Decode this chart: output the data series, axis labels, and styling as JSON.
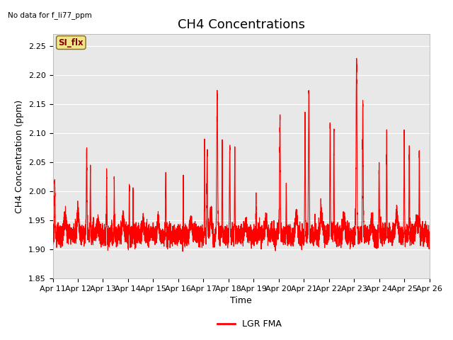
{
  "title": "CH4 Concentrations",
  "xlabel": "Time",
  "ylabel": "CH4 Concentration (ppm)",
  "top_left_text": "No data for f_li77_ppm",
  "annotation_box_text": "SI_flx",
  "annotation_box_color": "#f0e68c",
  "annotation_box_border": "#8b6914",
  "annotation_text_color": "#8b0000",
  "ylim": [
    1.85,
    2.27
  ],
  "yticks": [
    1.85,
    1.9,
    1.95,
    2.0,
    2.05,
    2.1,
    2.15,
    2.2,
    2.25
  ],
  "xtick_labels": [
    "Apr 11",
    "Apr 12",
    "Apr 13",
    "Apr 14",
    "Apr 15",
    "Apr 16",
    "Apr 17",
    "Apr 18",
    "Apr 19",
    "Apr 20",
    "Apr 21",
    "Apr 22",
    "Apr 23",
    "Apr 24",
    "Apr 25",
    "Apr 26"
  ],
  "line_color": "red",
  "line_width": 0.8,
  "legend_label": "LGR FMA",
  "legend_line_color": "red",
  "axes_bg_color": "#e8e8e8",
  "grid_color": "white",
  "grid_linewidth": 0.8,
  "title_fontsize": 13,
  "label_fontsize": 9,
  "tick_fontsize": 8,
  "figwidth": 6.4,
  "figheight": 4.8,
  "dpi": 100
}
